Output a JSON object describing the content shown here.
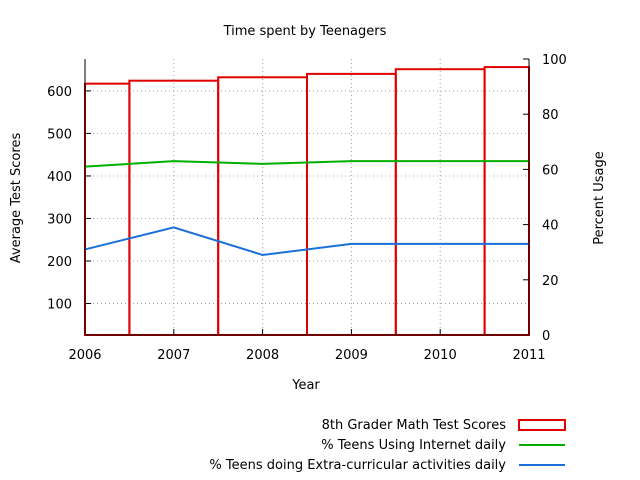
{
  "chart_data": {
    "type": "bar",
    "title": "Time spent by Teenagers",
    "xlabel": "Year",
    "ylabel": "Average Test Scores",
    "y2label": "Percent Usage",
    "grid": true,
    "legend_position": "bottom-right",
    "x_ticks": [
      2006,
      2007,
      2008,
      2009,
      2010,
      2011
    ],
    "xlim": [
      2006,
      2011
    ],
    "ylim": [
      26,
      675
    ],
    "y_ticks": [
      100,
      200,
      300,
      400,
      500,
      600
    ],
    "y2lim": [
      0,
      100
    ],
    "y2_ticks": [
      0,
      20,
      40,
      60,
      80,
      100
    ],
    "bars": {
      "name": "8th Grader Math Test Scores",
      "axis": "left",
      "color": "#e00000",
      "data": [
        {
          "x0": 2006,
          "x1": 2006.5,
          "value": 617
        },
        {
          "x0": 2006.5,
          "x1": 2007.5,
          "value": 624
        },
        {
          "x0": 2007.5,
          "x1": 2008.5,
          "value": 632
        },
        {
          "x0": 2008.5,
          "x1": 2009.5,
          "value": 640
        },
        {
          "x0": 2009.5,
          "x1": 2010.5,
          "value": 651
        },
        {
          "x0": 2010.5,
          "x1": 2011,
          "value": 656
        }
      ]
    },
    "series": [
      {
        "name": "% Teens Using Internet daily",
        "axis": "right",
        "color": "#00b000",
        "x": [
          2006,
          2007,
          2008,
          2009,
          2010,
          2011
        ],
        "values": [
          61,
          63,
          62,
          63,
          63,
          63
        ]
      },
      {
        "name": "% Teens doing Extra-curricular activities daily",
        "axis": "right",
        "color": "#1a6fd8",
        "x": [
          2006,
          2007,
          2008,
          2009,
          2010,
          2011
        ],
        "values": [
          31,
          39,
          29,
          33,
          33,
          33
        ]
      }
    ]
  }
}
